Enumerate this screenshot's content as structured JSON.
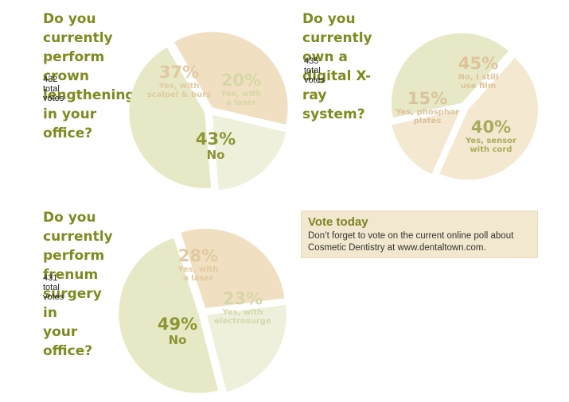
{
  "chart_data": [
    {
      "type": "pie",
      "title": "Do you currently perform\ncrown lengthening\nin your office?",
      "total_votes": "432 total votes",
      "slices": [
        {
          "percent_label": "37%",
          "caption": [
            "Yes, with",
            "scalpel & burs"
          ],
          "value": 37,
          "color": "#f1dfc1",
          "text_color": "#e2c9a1"
        },
        {
          "percent_label": "20%",
          "caption": [
            "Yes, with",
            "a laser"
          ],
          "value": 20,
          "color": "#eef0dc",
          "text_color": "#d4d8a8"
        },
        {
          "percent_label": "43%",
          "caption": [
            "No"
          ],
          "value": 43,
          "color": "#e7e9c6",
          "text_color": "#8d9633"
        }
      ]
    },
    {
      "type": "pie",
      "title": "Do you currently own a\ndigital X-ray system?",
      "total_votes": "435 total votes",
      "slices": [
        {
          "percent_label": "45%",
          "caption": [
            "No, I still",
            "use film"
          ],
          "value": 45,
          "color": "#f4e8d0",
          "text_color": "#ddc39a"
        },
        {
          "percent_label": "15%",
          "caption": [
            "Yes, phosphor",
            "plates"
          ],
          "value": 15,
          "color": "#f4e8d0",
          "text_color": "#d9c39c"
        },
        {
          "percent_label": "40%",
          "caption": [
            "Yes, sensor",
            "with cord"
          ],
          "value": 40,
          "color": "#e7e9c6",
          "text_color": "#a8ad5c"
        }
      ]
    },
    {
      "type": "pie",
      "title": "Do you currently perform\nfrenum surgery in\nyour office?",
      "total_votes": "431 total votes",
      "slices": [
        {
          "percent_label": "28%",
          "caption": [
            "Yes, with",
            "a laser"
          ],
          "value": 28,
          "color": "#f1dfc1",
          "text_color": "#e2c9a1"
        },
        {
          "percent_label": "23%",
          "caption": [
            "Yes, with",
            "electrosurge"
          ],
          "value": 23,
          "color": "#eef0dc",
          "text_color": "#d4d8a8"
        },
        {
          "percent_label": "49%",
          "caption": [
            "No"
          ],
          "value": 49,
          "color": "#e7e9c6",
          "text_color": "#8d9633"
        }
      ]
    }
  ],
  "vote_box": {
    "title": "Vote today",
    "body": "Don’t forget to vote on the current online poll about Cosmetic Dentistry at www.dentaltown.com."
  }
}
